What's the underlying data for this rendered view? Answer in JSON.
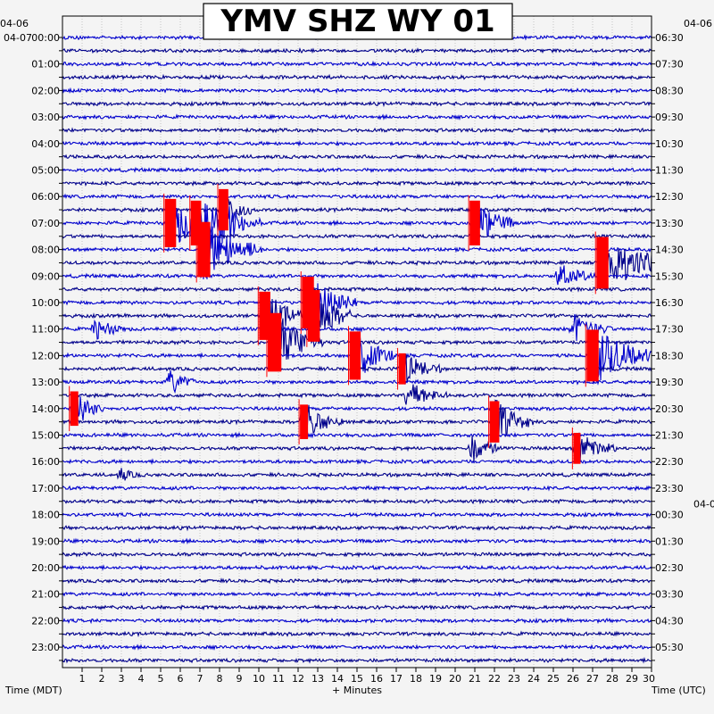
{
  "chart_data": {
    "type": "line",
    "title": "YMV SHZ WY 01",
    "xlabel": "+ Minutes",
    "left_axis_label": "Time (MDT)",
    "right_axis_label": "Time (UTC)",
    "x_ticks": [
      "1",
      "2",
      "3",
      "4",
      "5",
      "6",
      "7",
      "8",
      "9",
      "10",
      "11",
      "12",
      "13",
      "14",
      "15",
      "16",
      "17",
      "18",
      "19",
      "20",
      "21",
      "22",
      "23",
      "24",
      "25",
      "26",
      "27",
      "28",
      "29",
      "30"
    ],
    "xlim": [
      0,
      30
    ],
    "left_date_labels": [
      "04-06",
      "04-07"
    ],
    "right_date_label": "04-0",
    "left_hour_labels": [
      "00:00",
      "01:00",
      "02:00",
      "03:00",
      "04:00",
      "05:00",
      "06:00",
      "07:00",
      "08:00",
      "09:00",
      "10:00",
      "11:00",
      "12:00",
      "13:00",
      "14:00",
      "15:00",
      "16:00",
      "17:00",
      "18:00",
      "19:00",
      "20:00",
      "21:00",
      "22:00",
      "23:00"
    ],
    "right_hour_labels": [
      "06:30",
      "07:30",
      "08:30",
      "09:30",
      "10:30",
      "11:30",
      "12:30",
      "13:30",
      "14:30",
      "15:30",
      "16:30",
      "17:30",
      "18:30",
      "19:30",
      "20:30",
      "21:30",
      "22:30",
      "23:30",
      "00:30",
      "01:30",
      "02:30",
      "03:30",
      "04:30",
      "05:30"
    ],
    "rows_per_hour": 2,
    "trace_colors": [
      "#0000cd",
      "#00008b"
    ],
    "clip_color": "#ff0000",
    "events": [
      {
        "row": 13,
        "minute": 8.2,
        "amp": 1.2,
        "dur": 1.4,
        "clip": true
      },
      {
        "row": 14,
        "minute": 5.5,
        "amp": 1.4,
        "dur": 2.5,
        "clip": true
      },
      {
        "row": 14,
        "minute": 6.8,
        "amp": 1.3,
        "dur": 2.0,
        "clip": true
      },
      {
        "row": 14,
        "minute": 8.2,
        "amp": 1.0,
        "dur": 2.0,
        "clip": false
      },
      {
        "row": 14,
        "minute": 21.0,
        "amp": 1.3,
        "dur": 2.0,
        "clip": true
      },
      {
        "row": 16,
        "minute": 7.2,
        "amp": 1.6,
        "dur": 3.0,
        "clip": true
      },
      {
        "row": 17,
        "minute": 27.5,
        "amp": 1.5,
        "dur": 4.0,
        "clip": true
      },
      {
        "row": 18,
        "minute": 25.3,
        "amp": 0.6,
        "dur": 2.0,
        "clip": false
      },
      {
        "row": 20,
        "minute": 12.5,
        "amp": 1.5,
        "dur": 2.5,
        "clip": true
      },
      {
        "row": 21,
        "minute": 10.3,
        "amp": 1.4,
        "dur": 2.0,
        "clip": true
      },
      {
        "row": 21,
        "minute": 12.8,
        "amp": 1.5,
        "dur": 2.0,
        "clip": true
      },
      {
        "row": 22,
        "minute": 1.7,
        "amp": 0.6,
        "dur": 1.5,
        "clip": false
      },
      {
        "row": 22,
        "minute": 26.0,
        "amp": 0.8,
        "dur": 2.0,
        "clip": false
      },
      {
        "row": 23,
        "minute": 10.8,
        "amp": 1.7,
        "dur": 2.5,
        "clip": true
      },
      {
        "row": 24,
        "minute": 14.9,
        "amp": 1.4,
        "dur": 2.0,
        "clip": true
      },
      {
        "row": 24,
        "minute": 27.0,
        "amp": 1.5,
        "dur": 3.5,
        "clip": true
      },
      {
        "row": 25,
        "minute": 17.3,
        "amp": 0.9,
        "dur": 2.0,
        "clip": true
      },
      {
        "row": 26,
        "minute": 5.5,
        "amp": 0.6,
        "dur": 1.5,
        "clip": false
      },
      {
        "row": 27,
        "minute": 17.6,
        "amp": 0.7,
        "dur": 2.0,
        "clip": false
      },
      {
        "row": 28,
        "minute": 0.6,
        "amp": 1.0,
        "dur": 1.5,
        "clip": true
      },
      {
        "row": 29,
        "minute": 12.3,
        "amp": 1.0,
        "dur": 2.0,
        "clip": true
      },
      {
        "row": 29,
        "minute": 22.0,
        "amp": 1.2,
        "dur": 2.0,
        "clip": true
      },
      {
        "row": 31,
        "minute": 20.9,
        "amp": 0.7,
        "dur": 1.5,
        "clip": false
      },
      {
        "row": 31,
        "minute": 26.2,
        "amp": 0.9,
        "dur": 2.0,
        "clip": true
      },
      {
        "row": 33,
        "minute": 3.0,
        "amp": 0.3,
        "dur": 1.0,
        "clip": false
      }
    ]
  }
}
